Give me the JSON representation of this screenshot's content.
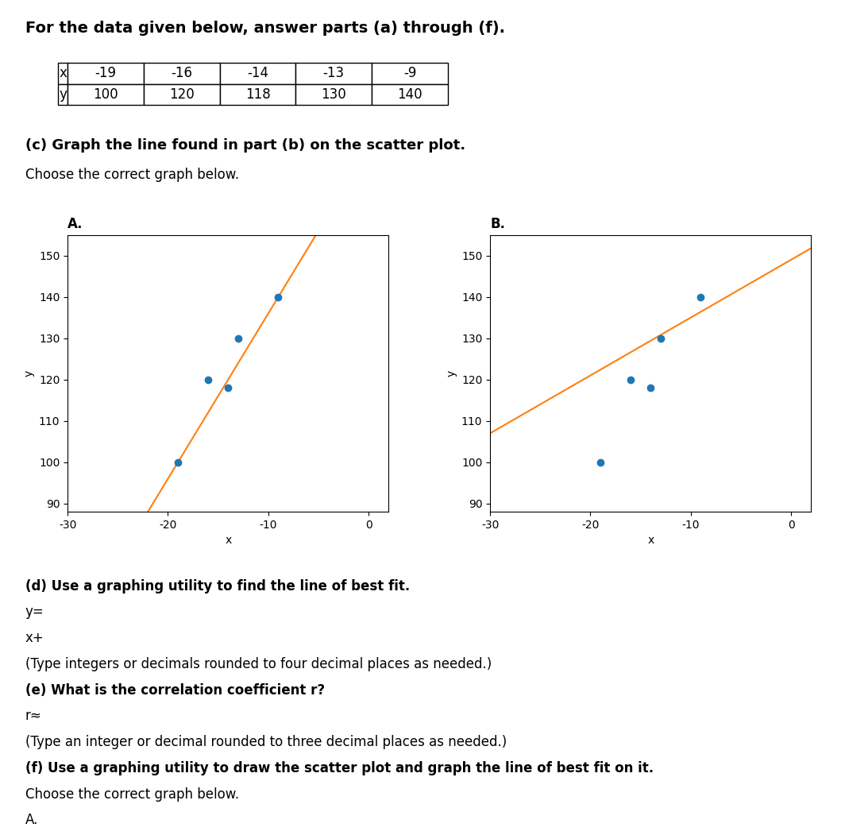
{
  "title": "For the data given below, answer parts (a) through (f).",
  "subtitle": "(c) Graph the line found in part (b) on the scatter plot.",
  "annotations": [
    "Choose the correct graph below.",
    "(d) Use a graphing utility to find the line of best fit.",
    "y=",
    "x+",
    "(Type integers or decimals rounded to four decimal places as needed.)",
    "(e) What is the correlation coefficient r?",
    "r≈",
    "(Type an integer or decimal rounded to three decimal places as needed.)",
    "(f) Use a graphing utility to draw the scatter plot and graph the line of best fit on it.",
    "Choose the correct graph below.",
    "A."
  ],
  "chart_data": [
    {
      "type": "scatter",
      "title": "A.",
      "xlabel": "x",
      "ylabel": "y",
      "xlim": [
        -30,
        2
      ],
      "ylim": [
        88,
        155
      ],
      "xticks": [
        -30,
        -20,
        -10,
        0
      ],
      "yticks": [
        90,
        100,
        110,
        120,
        130,
        140,
        150
      ],
      "series": [
        {
          "type": "scatter",
          "x": [
            -19,
            -16,
            -14,
            -13,
            -9
          ],
          "values": [
            100,
            120,
            118,
            130,
            140
          ]
        },
        {
          "type": "line",
          "x": [
            -22,
            -5.25
          ],
          "values": [
            88,
            155
          ]
        }
      ]
    },
    {
      "type": "scatter",
      "title": "B.",
      "xlabel": "x",
      "ylabel": "y",
      "xlim": [
        -30,
        2
      ],
      "ylim": [
        88,
        155
      ],
      "xticks": [
        -30,
        -20,
        -10,
        0
      ],
      "yticks": [
        90,
        100,
        110,
        120,
        130,
        140,
        150
      ],
      "series": [
        {
          "type": "scatter",
          "x": [
            -19,
            -16,
            -14,
            -13,
            -9
          ],
          "values": [
            100,
            120,
            118,
            130,
            140
          ]
        },
        {
          "type": "line",
          "x": [
            -30,
            2
          ],
          "values": [
            107,
            151.8
          ]
        }
      ]
    }
  ]
}
